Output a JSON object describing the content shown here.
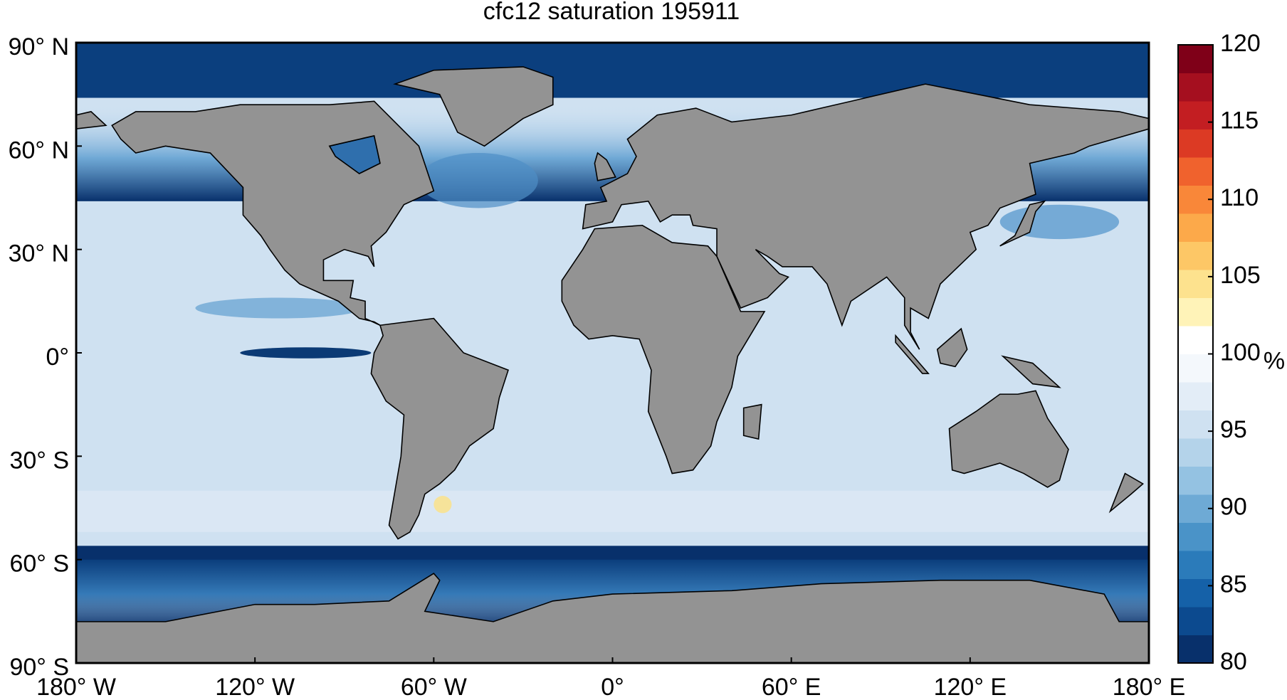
{
  "chart_data": {
    "type": "map",
    "title": "cfc12 saturation 195911",
    "xlim": [
      -180,
      180
    ],
    "xticks": [
      {
        "value": -180,
        "label": "180° W"
      },
      {
        "value": -120,
        "label": "120° W"
      },
      {
        "value": -60,
        "label": "60° W"
      },
      {
        "value": 0,
        "label": "0°"
      },
      {
        "value": 60,
        "label": "60° E"
      },
      {
        "value": 120,
        "label": "120° E"
      },
      {
        "value": 180,
        "label": "180° E"
      }
    ],
    "ylim": [
      -90,
      90
    ],
    "yticks": [
      {
        "value": 90,
        "label": "90° N"
      },
      {
        "value": 60,
        "label": "60° N"
      },
      {
        "value": 30,
        "label": "30° N"
      },
      {
        "value": 0,
        "label": "0°"
      },
      {
        "value": -30,
        "label": "30° S"
      },
      {
        "value": -60,
        "label": "60° S"
      },
      {
        "value": -90,
        "label": "90° S"
      }
    ],
    "colorbar": {
      "label": "%",
      "lim": [
        80,
        120
      ],
      "ticks": [
        80,
        85,
        90,
        95,
        100,
        105,
        110,
        115,
        120
      ],
      "colormap": [
        "#08306b",
        "#0c4a8f",
        "#1561a8",
        "#2b7bba",
        "#4a93c8",
        "#6eaad5",
        "#94c2e2",
        "#b4d3ea",
        "#cfe1f1",
        "#e3edf7",
        "#f4f8fc",
        "#ffffff",
        "#fff3b8",
        "#fde28e",
        "#fdc766",
        "#fca94a",
        "#f98739",
        "#f0622d",
        "#dc3a24",
        "#c31e22",
        "#a50f1f",
        "#7f0018"
      ]
    }
  }
}
